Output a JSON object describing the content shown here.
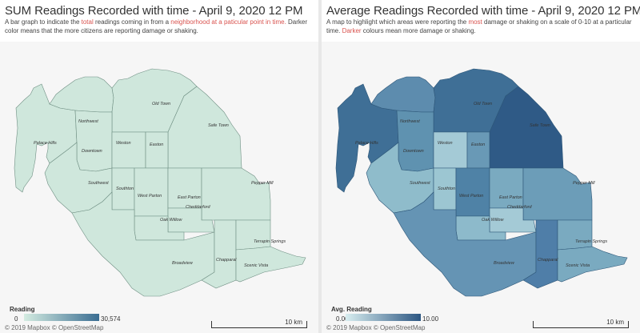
{
  "left": {
    "title": "SUM Readings Recorded with time - April 9, 2020 12 PM",
    "subtitle_parts": [
      "A bar graph to indicate the ",
      "total",
      " readings coming in from a ",
      "neighborhood at a paticular point in time.",
      " Darker color means  that the more citizens are reporting damage or shaking."
    ],
    "legend": {
      "title": "Reading",
      "min": "0",
      "max": "30,574"
    },
    "attribution": "© 2019 Mapbox © OpenStreetMap",
    "scale_label": "10 km",
    "fill_color": "#cfe7dc"
  },
  "right": {
    "title": "Average Readings Recorded with time - April 9, 2020 12 PM",
    "subtitle_parts": [
      "A map to highlight which areas were reporting the ",
      "most",
      " damage or shaking on a scale of 0-10 at a particular time. ",
      "Darker",
      " colours mean more damage or shaking."
    ],
    "legend": {
      "title": "Avg. Reading",
      "min": "0.00",
      "max": "10.00"
    },
    "attribution": "© 2019 Mapbox © OpenStreetMap",
    "scale_label": "10 km"
  },
  "neighborhoods": [
    {
      "name": "Palace Hills",
      "avg_color": "#3f6f96"
    },
    {
      "name": "Northwest",
      "avg_color": "#5d8cae"
    },
    {
      "name": "Old Town",
      "avg_color": "#3f6f96"
    },
    {
      "name": "Safe Town",
      "avg_color": "#2f5a86"
    },
    {
      "name": "Downtown",
      "avg_color": "#5f92b0"
    },
    {
      "name": "Weston",
      "avg_color": "#a4cad6"
    },
    {
      "name": "Easton",
      "avg_color": "#6999b6"
    },
    {
      "name": "Southwest",
      "avg_color": "#8fbccb"
    },
    {
      "name": "Southton",
      "avg_color": "#9cc6d2"
    },
    {
      "name": "West Parton",
      "avg_color": "#4f82a6"
    },
    {
      "name": "East Parton",
      "avg_color": "#7aaac0"
    },
    {
      "name": "Pepper Mill",
      "avg_color": "#6c9db8"
    },
    {
      "name": "Cheddarford",
      "avg_color": "#a4cad6"
    },
    {
      "name": "Oak Willow",
      "avg_color": "#8dbacb"
    },
    {
      "name": "Broadview",
      "avg_color": "#6594b4"
    },
    {
      "name": "Chapparal",
      "avg_color": "#4f7ea8"
    },
    {
      "name": "Terrapin Springs",
      "avg_color": "#7aaac0"
    },
    {
      "name": "Scenic Vista",
      "avg_color": "#7aaac0"
    }
  ]
}
